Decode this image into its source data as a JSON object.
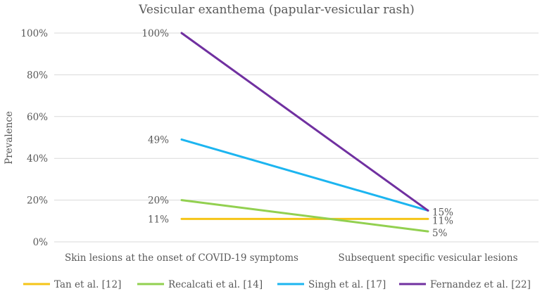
{
  "chart_data": {
    "type": "line",
    "title": "Vesicular exanthema (papular-vesicular rash)",
    "xlabel": "",
    "ylabel": "Prevalence",
    "categories": [
      "Skin lesions at the onset of COVID-19 symptoms",
      "Subsequent specific vesicular lesions"
    ],
    "ylim": [
      0,
      100
    ],
    "yticks": [
      "0%",
      "20%",
      "40%",
      "60%",
      "80%",
      "100%"
    ],
    "grid": true,
    "legend_position": "bottom",
    "series": [
      {
        "name": "Tan et al. [12]",
        "values": [
          11,
          11
        ],
        "labels": [
          "11%",
          "11%"
        ],
        "color": "#F5C518"
      },
      {
        "name": "Recalcati et al. [14]",
        "values": [
          20,
          5
        ],
        "labels": [
          "20%",
          "5%"
        ],
        "color": "#92D050"
      },
      {
        "name": "Singh et al. [17]",
        "values": [
          49,
          15
        ],
        "labels": [
          "49%",
          "15%"
        ],
        "color": "#1CB5F0"
      },
      {
        "name": "Fernandez et al. [22]",
        "values": [
          100,
          15
        ],
        "labels": [
          "100%",
          ""
        ],
        "color": "#7030A0"
      }
    ]
  }
}
